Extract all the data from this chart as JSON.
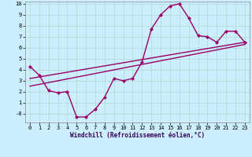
{
  "xlabel": "Windchill (Refroidissement éolien,°C)",
  "ylabel": "",
  "bg_color": "#cceeff",
  "line_color": "#990066",
  "grid_color": "#aaddcc",
  "xlim": [
    -0.5,
    23.5
  ],
  "ylim": [
    -0.8,
    10.2
  ],
  "xticks": [
    0,
    1,
    2,
    3,
    4,
    5,
    6,
    7,
    8,
    9,
    10,
    11,
    12,
    13,
    14,
    15,
    16,
    17,
    18,
    19,
    20,
    21,
    22,
    23
  ],
  "yticks": [
    0,
    1,
    2,
    3,
    4,
    5,
    6,
    7,
    8,
    9,
    10
  ],
  "series1_x": [
    0,
    1,
    2,
    3,
    4,
    5,
    6,
    7,
    8,
    9,
    10,
    11,
    12,
    13,
    14,
    15,
    16,
    17,
    18,
    19,
    20,
    21,
    22,
    23
  ],
  "series1_y": [
    4.3,
    3.5,
    2.1,
    1.9,
    2.0,
    -0.3,
    -0.3,
    0.4,
    1.5,
    3.2,
    3.0,
    3.2,
    4.7,
    7.7,
    9.0,
    9.8,
    10.0,
    8.7,
    7.1,
    7.0,
    6.5,
    7.5,
    7.5,
    6.5
  ],
  "series2_x": [
    0,
    23
  ],
  "series2_y": [
    3.2,
    6.5
  ],
  "series3_x": [
    0,
    23
  ],
  "series3_y": [
    2.5,
    6.3
  ],
  "marker": "D",
  "markersize": 2.2,
  "linewidth": 1.0,
  "tick_fontsize": 5.0,
  "xlabel_fontsize": 5.5
}
